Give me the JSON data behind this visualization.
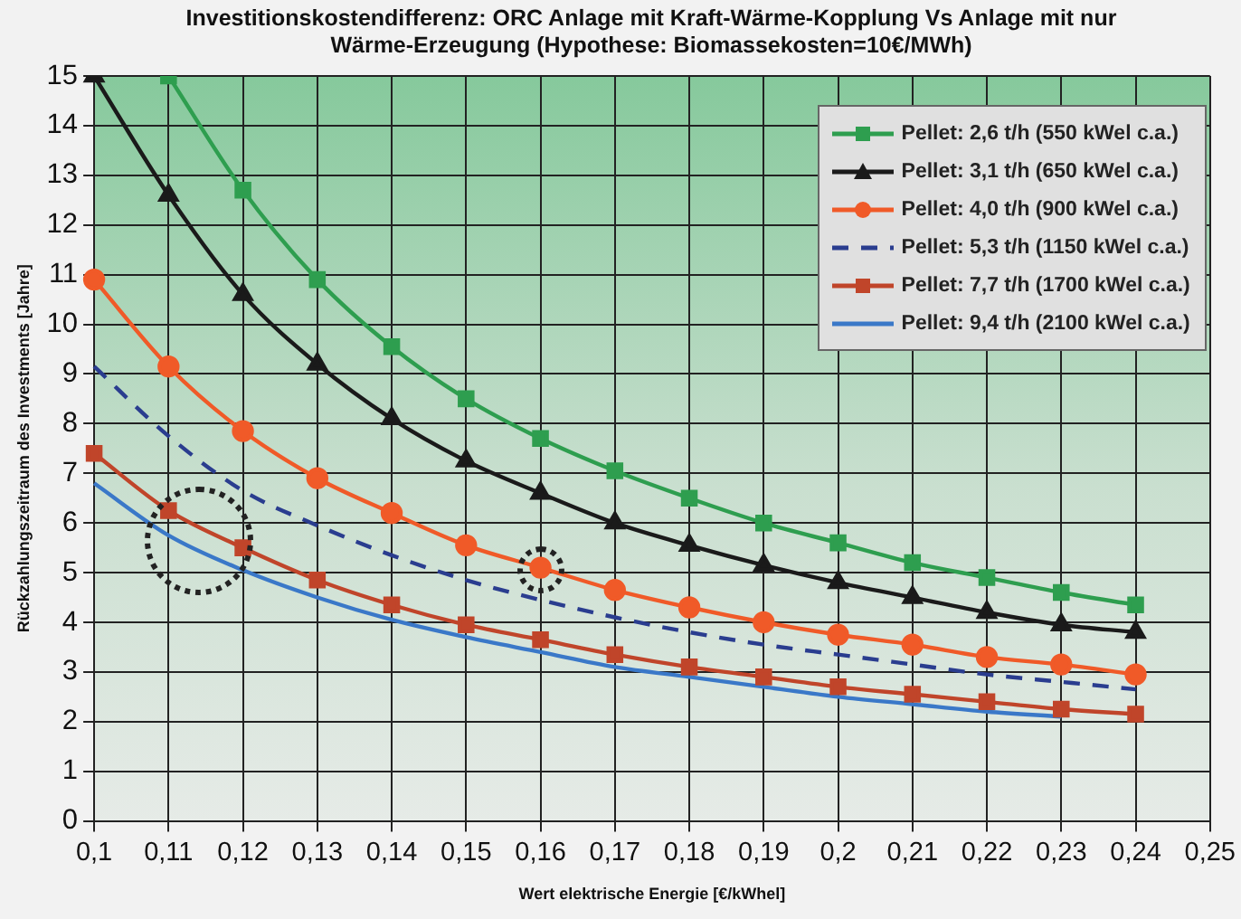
{
  "chart_data": {
    "type": "line",
    "title": "Investitionskostendifferenz: ORC Anlage mit Kraft-Wärme-Kopplung Vs Anlage mit nur Wärme-Erzeugung (Hypothese: Biomassekosten=10€/MWh)",
    "xlabel": "Wert elektrische Energie [€/kWhel]",
    "ylabel": "Rückzahlungszeitraum des Investments [Jahre]",
    "categories": [
      "0,1",
      "0,11",
      "0,12",
      "0,13",
      "0,14",
      "0,15",
      "0,16",
      "0,17",
      "0,18",
      "0,19",
      "0,2",
      "0,21",
      "0,22",
      "0,23",
      "0,24",
      "0,25"
    ],
    "series": [
      {
        "name": "Pellet: 2,6 t/h (550 kWel c.a.)",
        "color": "#2e9e4f",
        "marker": "square",
        "line_style": "solid",
        "values": [
          null,
          15,
          12.7,
          10.9,
          9.55,
          8.5,
          7.7,
          7.05,
          6.5,
          6.0,
          5.6,
          5.2,
          4.9,
          4.6,
          4.35,
          null
        ]
      },
      {
        "name": "Pellet: 3,1 t/h (650 kWel c.a.)",
        "color": "#1a1a1a",
        "marker": "triangle",
        "line_style": "solid",
        "values": [
          15,
          12.6,
          10.6,
          9.2,
          8.1,
          7.25,
          6.6,
          6.0,
          5.55,
          5.15,
          4.8,
          4.5,
          4.2,
          3.95,
          3.8,
          null
        ]
      },
      {
        "name": "Pellet: 4,0 t/h (900 kWel c.a.)",
        "color": "#f05a28",
        "marker": "circle",
        "line_style": "solid",
        "values": [
          10.9,
          9.15,
          7.85,
          6.9,
          6.2,
          5.55,
          5.1,
          4.65,
          4.3,
          4.0,
          3.75,
          3.55,
          3.3,
          3.15,
          2.95,
          null
        ]
      },
      {
        "name": "Pellet: 5,3 t/h (1150 kWel c.a.)",
        "color": "#2a3d8f",
        "marker": "none",
        "line_style": "dashed",
        "values": [
          9.15,
          7.75,
          6.65,
          5.95,
          5.35,
          4.85,
          4.45,
          4.1,
          3.8,
          3.55,
          3.35,
          3.15,
          2.95,
          2.8,
          2.65,
          null
        ]
      },
      {
        "name": "Pellet: 7,7 t/h (1700 kWel c.a.)",
        "color": "#c0452a",
        "marker": "square",
        "line_style": "solid",
        "values": [
          7.4,
          6.25,
          5.5,
          4.85,
          4.35,
          3.95,
          3.65,
          3.35,
          3.1,
          2.9,
          2.7,
          2.55,
          2.4,
          2.25,
          2.15,
          null
        ]
      },
      {
        "name": "Pellet: 9,4 t/h (2100 kWel c.a.)",
        "color": "#3a78c8",
        "marker": "none",
        "line_style": "solid",
        "values": [
          6.8,
          5.75,
          5.05,
          4.5,
          4.05,
          3.7,
          3.4,
          3.1,
          2.9,
          2.7,
          2.5,
          2.35,
          2.2,
          2.1,
          null,
          null
        ]
      }
    ],
    "ylim": [
      0,
      15
    ],
    "yticks": [
      0,
      1,
      2,
      3,
      4,
      5,
      6,
      7,
      8,
      9,
      10,
      11,
      12,
      13,
      14,
      15
    ],
    "grid": true,
    "legend": "top right"
  }
}
